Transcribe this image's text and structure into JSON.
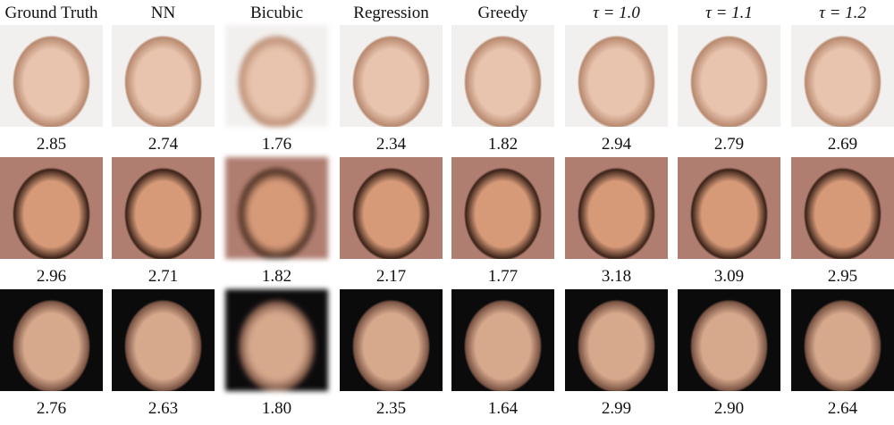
{
  "columns": [
    "Ground Truth",
    "NN",
    "Bicubic",
    "Regression",
    "Greedy",
    "τ = 1.0",
    "τ = 1.1",
    "τ = 1.2"
  ],
  "scores": [
    [
      "2.85",
      "2.74",
      "1.76",
      "2.34",
      "1.82",
      "2.94",
      "2.79",
      "2.69"
    ],
    [
      "2.96",
      "2.71",
      "1.82",
      "2.17",
      "1.77",
      "3.18",
      "3.09",
      "2.95"
    ],
    [
      "2.76",
      "2.63",
      "1.80",
      "2.35",
      "1.64",
      "2.99",
      "2.90",
      "2.64"
    ]
  ]
}
